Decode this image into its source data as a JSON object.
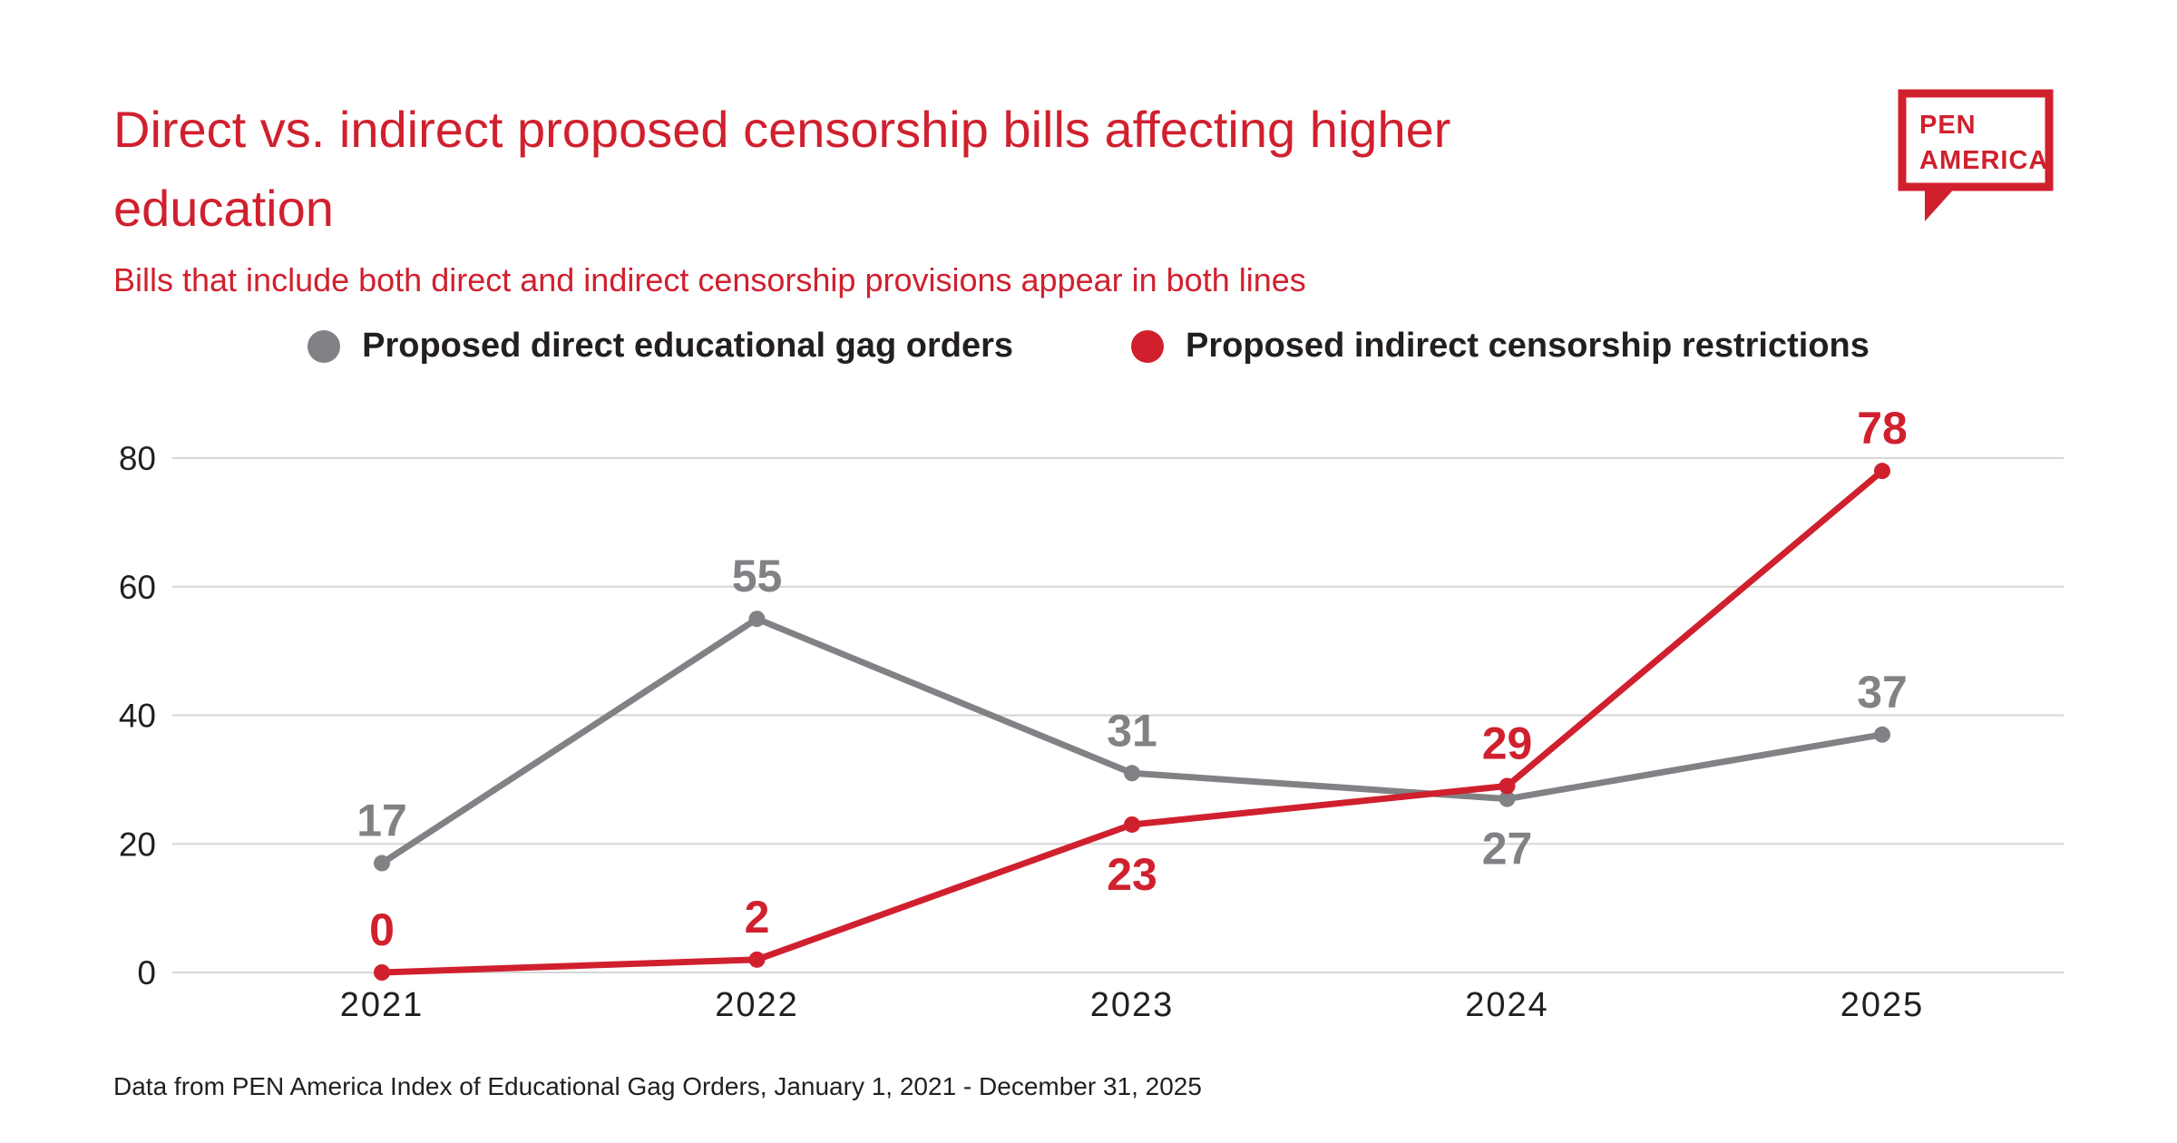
{
  "header": {
    "title": "Direct vs. indirect proposed censorship bills affecting higher education",
    "subtitle": "Bills that include both direct and indirect censorship provisions appear in both lines"
  },
  "logo": {
    "line1": "PEN",
    "line2": "AMERICA"
  },
  "footer": {
    "source": "Data from PEN America Index of Educational Gag Orders, January 1, 2021 - December 31, 2025"
  },
  "colors": {
    "brand_red": "#d0202e",
    "series_gray": "#808285",
    "grid": "#d6d6d6",
    "text_dark": "#231f20"
  },
  "chart_data": {
    "type": "line",
    "title": "Direct vs. indirect proposed censorship bills affecting higher education",
    "x": [
      "2021",
      "2022",
      "2023",
      "2024",
      "2025"
    ],
    "series": [
      {
        "name": "Proposed direct educational gag orders",
        "color": "#808285",
        "values": [
          17,
          55,
          31,
          27,
          37
        ],
        "label_positions": [
          "above",
          "above",
          "above",
          "below",
          "above"
        ]
      },
      {
        "name": "Proposed indirect censorship restrictions",
        "color": "#d0202e",
        "values": [
          0,
          2,
          23,
          29,
          78
        ],
        "label_positions": [
          "above",
          "above",
          "below",
          "above",
          "above"
        ]
      }
    ],
    "xlabel": "",
    "ylabel": "",
    "ylim": [
      0,
      80
    ],
    "yticks": [
      0,
      20,
      40,
      60,
      80
    ],
    "grid": true,
    "legend_position": "top"
  }
}
